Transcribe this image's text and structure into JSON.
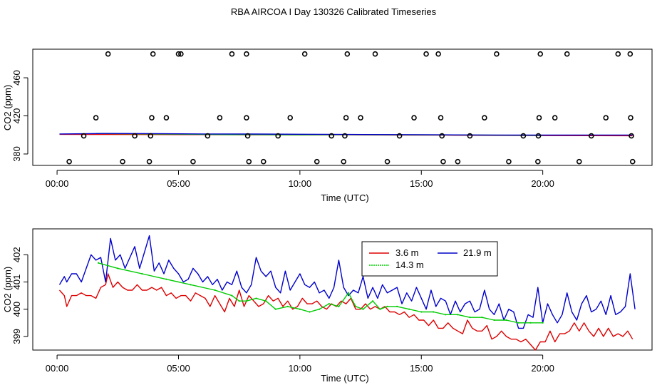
{
  "page": {
    "title": "RBA AIRCOA I  Day 130326  Calibrated Timeseries"
  },
  "colors": {
    "s36": "#dd0000",
    "s143": "#00cc00",
    "s219": "#0000cc",
    "axis": "#000000"
  },
  "chart_data": [
    {
      "type": "scatter",
      "xlabel": "Time (UTC)",
      "ylabel": "CO2 (ppm)",
      "xlim": [
        -1.0,
        24.5
      ],
      "ylim": [
        368,
        490
      ],
      "xticks": [
        0,
        5,
        10,
        15,
        20
      ],
      "xtick_labels": [
        "00:00",
        "05:00",
        "10:00",
        "15:00",
        "20:00"
      ],
      "yticks": [
        380,
        420,
        460
      ],
      "ytick_labels": [
        "380",
        "420",
        "460"
      ],
      "marker_series": {
        "name": "raw samples",
        "x": [
          0.5,
          1.1,
          1.6,
          2.1,
          2.7,
          3.2,
          3.8,
          3.85,
          3.9,
          3.95,
          4.5,
          5.0,
          5.1,
          5.6,
          6.2,
          6.7,
          7.2,
          7.8,
          7.8,
          7.85,
          7.9,
          8.5,
          9.1,
          9.6,
          10.2,
          10.7,
          11.3,
          11.8,
          11.85,
          11.9,
          11.95,
          12.5,
          13.1,
          13.6,
          14.1,
          14.7,
          15.2,
          15.7,
          15.8,
          15.85,
          15.9,
          16.5,
          17.0,
          17.6,
          18.1,
          18.6,
          19.2,
          19.8,
          19.82,
          19.85,
          19.9,
          20.5,
          21.0,
          21.5,
          22.0,
          22.6,
          23.1,
          23.6,
          23.62,
          23.65,
          23.7
        ],
        "y": [
          372,
          399,
          418,
          485,
          372,
          399,
          372,
          399,
          418,
          485,
          418,
          485,
          485,
          372,
          399,
          418,
          485,
          485,
          418,
          399,
          372,
          372,
          399,
          418,
          485,
          372,
          399,
          372,
          399,
          418,
          485,
          418,
          485,
          372,
          399,
          418,
          485,
          485,
          418,
          399,
          372,
          372,
          399,
          418,
          485,
          372,
          399,
          372,
          399,
          418,
          485,
          418,
          485,
          372,
          399,
          418,
          485,
          485,
          418,
          399,
          372
        ]
      },
      "series": [
        {
          "name": "3.6 m",
          "color": "#dd0000",
          "x": [
            0.1,
            2.0,
            4.0,
            6.0,
            8.0,
            10.0,
            12.0,
            14.0,
            16.0,
            18.0,
            20.0,
            22.0,
            23.7
          ],
          "y": [
            400.6,
            400.5,
            400.4,
            400.3,
            400.2,
            400.0,
            400.1,
            399.9,
            399.7,
            399.5,
            399.3,
            399.2,
            399.1
          ]
        },
        {
          "name": "14.3 m",
          "color": "#00cc00",
          "x": [
            1.6,
            4.0,
            7.2,
            8.0,
            10.0,
            12.0,
            14.0,
            16.0,
            18.0,
            20.0
          ],
          "y": [
            401.5,
            401.0,
            400.3,
            400.4,
            400.1,
            400.3,
            400.1,
            400.0,
            399.7,
            399.5
          ]
        },
        {
          "name": "21.9 m",
          "color": "#0000cc",
          "x": [
            0.1,
            2.0,
            4.0,
            6.0,
            8.0,
            10.0,
            12.0,
            14.0,
            16.0,
            18.0,
            20.0,
            22.0,
            23.7
          ],
          "y": [
            401.0,
            401.5,
            401.4,
            401.0,
            400.9,
            400.7,
            400.5,
            400.3,
            400.1,
            399.9,
            399.8,
            399.9,
            399.9
          ]
        }
      ]
    },
    {
      "type": "line",
      "xlabel": "Time (UTC)",
      "ylabel": "CO2 (ppm)",
      "xlim": [
        -1.0,
        24.5
      ],
      "ylim": [
        398.5,
        402.95
      ],
      "xticks": [
        0,
        5,
        10,
        15,
        20
      ],
      "xtick_labels": [
        "00:00",
        "05:00",
        "10:00",
        "15:00",
        "20:00"
      ],
      "yticks": [
        399,
        400,
        401,
        402
      ],
      "ytick_labels": [
        "399",
        "400",
        "401",
        "402"
      ],
      "legend": {
        "position": "top-center",
        "entries": [
          "3.6 m",
          "21.9 m",
          "14.3 m"
        ]
      },
      "series": [
        {
          "name": "3.6 m",
          "color": "#dd0000",
          "x": [
            0.1,
            0.3,
            0.4,
            0.6,
            0.8,
            1.0,
            1.2,
            1.4,
            1.6,
            1.8,
            2.0,
            2.1,
            2.3,
            2.5,
            2.7,
            2.9,
            3.1,
            3.3,
            3.5,
            3.7,
            3.9,
            4.1,
            4.3,
            4.5,
            4.7,
            4.9,
            5.1,
            5.3,
            5.5,
            5.7,
            5.9,
            6.1,
            6.3,
            6.5,
            6.7,
            6.9,
            7.1,
            7.3,
            7.5,
            7.7,
            7.9,
            8.1,
            8.3,
            8.5,
            8.7,
            8.9,
            9.1,
            9.3,
            9.5,
            9.7,
            9.9,
            10.1,
            10.3,
            10.5,
            10.7,
            10.9,
            11.1,
            11.3,
            11.5,
            11.7,
            11.9,
            12.1,
            12.3,
            12.5,
            12.7,
            12.9,
            13.1,
            13.3,
            13.5,
            13.7,
            13.9,
            14.1,
            14.3,
            14.5,
            14.7,
            14.9,
            15.1,
            15.3,
            15.5,
            15.7,
            15.9,
            16.1,
            16.3,
            16.5,
            16.7,
            16.9,
            17.1,
            17.3,
            17.5,
            17.7,
            17.9,
            18.1,
            18.3,
            18.5,
            18.7,
            18.9,
            19.1,
            19.3,
            19.5,
            19.7,
            19.9,
            20.1,
            20.3,
            20.5,
            20.7,
            20.9,
            21.1,
            21.3,
            21.5,
            21.7,
            21.9,
            22.1,
            22.3,
            22.5,
            22.7,
            22.9,
            23.1,
            23.3,
            23.5,
            23.7
          ],
          "y": [
            400.7,
            400.5,
            400.1,
            400.5,
            400.5,
            400.6,
            400.5,
            400.5,
            400.4,
            400.8,
            400.9,
            401.3,
            400.8,
            401.0,
            400.8,
            400.7,
            400.7,
            400.9,
            400.7,
            400.7,
            400.8,
            400.7,
            400.8,
            400.5,
            400.6,
            400.4,
            400.5,
            400.5,
            400.3,
            400.6,
            400.5,
            400.4,
            400.1,
            400.5,
            400.2,
            399.9,
            400.4,
            400.1,
            400.7,
            400.1,
            400.5,
            400.3,
            400.1,
            400.2,
            400.5,
            400.3,
            400.4,
            400.1,
            400.3,
            400.0,
            400.1,
            400.4,
            400.2,
            400.2,
            400.3,
            400.1,
            400.0,
            400.2,
            400.1,
            400.3,
            400.2,
            400.4,
            400.0,
            400.0,
            400.2,
            400.0,
            400.1,
            400.0,
            400.1,
            399.9,
            399.9,
            399.8,
            399.9,
            399.7,
            399.8,
            399.6,
            399.6,
            399.4,
            399.6,
            399.3,
            399.3,
            399.5,
            399.3,
            399.2,
            399.1,
            399.6,
            399.3,
            399.2,
            399.2,
            399.4,
            398.9,
            399.0,
            399.2,
            399.0,
            398.9,
            398.9,
            398.8,
            398.9,
            398.7,
            398.5,
            398.8,
            398.8,
            399.2,
            398.8,
            399.1,
            399.1,
            399.2,
            399.5,
            399.2,
            399.5,
            399.2,
            399.0,
            399.3,
            399.0,
            399.3,
            399.0,
            399.1,
            399.0,
            399.2,
            398.9
          ],
          "markers": false
        },
        {
          "name": "21.9 m",
          "color": "#0000cc",
          "x": [
            0.1,
            0.3,
            0.4,
            0.6,
            0.8,
            1.0,
            1.2,
            1.4,
            1.6,
            1.8,
            2.0,
            2.2,
            2.4,
            2.6,
            2.8,
            3.0,
            3.2,
            3.4,
            3.6,
            3.8,
            4.0,
            4.2,
            4.4,
            4.6,
            4.8,
            5.0,
            5.2,
            5.4,
            5.6,
            5.8,
            6.0,
            6.2,
            6.4,
            6.6,
            6.8,
            7.0,
            7.2,
            7.4,
            7.6,
            7.8,
            8.0,
            8.2,
            8.4,
            8.6,
            8.8,
            9.0,
            9.2,
            9.4,
            9.6,
            9.8,
            10.0,
            10.2,
            10.4,
            10.6,
            10.8,
            11.0,
            11.2,
            11.4,
            11.6,
            11.8,
            12.0,
            12.2,
            12.4,
            12.6,
            12.8,
            13.0,
            13.2,
            13.4,
            13.6,
            13.8,
            14.0,
            14.2,
            14.4,
            14.6,
            14.8,
            15.0,
            15.2,
            15.4,
            15.6,
            15.8,
            16.0,
            16.2,
            16.4,
            16.6,
            16.8,
            17.0,
            17.2,
            17.4,
            17.6,
            17.8,
            18.0,
            18.2,
            18.4,
            18.6,
            18.8,
            19.0,
            19.2,
            19.4,
            19.6,
            19.8,
            20.0,
            20.2,
            20.4,
            20.6,
            20.8,
            21.0,
            21.2,
            21.4,
            21.6,
            21.8,
            22.0,
            22.2,
            22.4,
            22.6,
            22.8,
            23.0,
            23.2,
            23.4,
            23.6,
            23.8
          ],
          "y": [
            400.9,
            401.2,
            401.0,
            401.3,
            401.3,
            401.0,
            401.5,
            402.0,
            401.8,
            401.9,
            401.0,
            402.6,
            401.8,
            402.0,
            401.5,
            401.9,
            402.3,
            401.5,
            402.1,
            402.7,
            401.4,
            401.7,
            401.3,
            401.8,
            401.5,
            401.3,
            401.0,
            401.1,
            401.5,
            401.3,
            401.0,
            401.2,
            400.9,
            401.1,
            400.7,
            401.0,
            400.9,
            401.4,
            400.8,
            400.6,
            400.9,
            401.9,
            401.4,
            401.2,
            401.4,
            400.8,
            400.6,
            401.4,
            400.7,
            401.0,
            401.3,
            400.9,
            400.8,
            401.0,
            400.6,
            400.7,
            400.4,
            400.8,
            401.8,
            400.8,
            400.5,
            400.7,
            400.6,
            401.2,
            400.4,
            400.8,
            400.4,
            400.9,
            400.6,
            400.7,
            400.8,
            400.2,
            400.6,
            400.3,
            400.8,
            400.4,
            400.0,
            400.7,
            400.1,
            400.4,
            400.3,
            399.8,
            400.3,
            399.9,
            400.2,
            400.3,
            399.9,
            400.0,
            400.7,
            400.0,
            399.8,
            400.2,
            399.6,
            400.0,
            399.9,
            399.3,
            399.3,
            399.8,
            399.7,
            400.8,
            399.5,
            400.2,
            399.8,
            399.5,
            399.8,
            400.6,
            399.9,
            399.6,
            400.2,
            400.5,
            399.9,
            400.0,
            400.3,
            399.8,
            400.5,
            399.8,
            399.9,
            400.1,
            401.3,
            400.0
          ],
          "markers": false
        },
        {
          "name": "14.3 m",
          "color": "#00cc00",
          "x": [
            1.7,
            2.5,
            3.5,
            4.5,
            5.5,
            6.5,
            7.2,
            7.5,
            7.8,
            8.2,
            8.6,
            9.0,
            9.5,
            10.0,
            10.4,
            10.8,
            11.2,
            11.6,
            12.0,
            12.3,
            12.6,
            13.0,
            13.3,
            13.6,
            14.0,
            14.5,
            15.0,
            15.5,
            16.0,
            16.5,
            17.0,
            17.5,
            18.0,
            18.5,
            19.0,
            19.5,
            20.0
          ],
          "y": [
            401.7,
            401.5,
            401.3,
            401.1,
            400.9,
            400.7,
            400.5,
            400.3,
            400.3,
            400.4,
            400.3,
            400.0,
            400.1,
            400.0,
            399.9,
            400.0,
            400.2,
            400.1,
            400.6,
            400.1,
            400.0,
            400.3,
            400.0,
            400.1,
            400.1,
            400.0,
            399.9,
            399.9,
            399.8,
            399.8,
            399.7,
            399.7,
            399.6,
            399.6,
            399.5,
            399.5,
            399.5
          ],
          "markers": true
        }
      ]
    }
  ]
}
